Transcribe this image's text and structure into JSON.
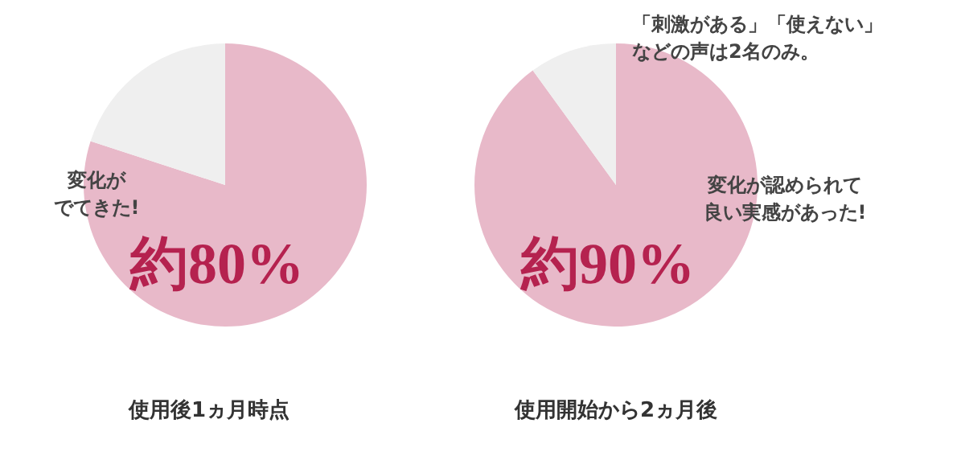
{
  "chart_data": [
    {
      "type": "pie",
      "title": "使用後1ヵ月時点",
      "categories": [
        null,
        null
      ],
      "values": [
        80,
        20
      ],
      "colors": [
        "#e8b9c9",
        "#efefef"
      ],
      "value_labels": [
        "約80%",
        null
      ],
      "annotations": [
        "変化が",
        "でてきた!"
      ]
    },
    {
      "type": "pie",
      "title": "使用開始から2ヵ月後",
      "categories": [
        null,
        null
      ],
      "values": [
        90,
        10
      ],
      "colors": [
        "#e8b9c9",
        "#efefef"
      ],
      "value_labels": [
        "約90%",
        null
      ],
      "annotations": [
        "「刺激がある」「使えない」",
        "などの声は2名のみ。",
        "変化が認められて",
        "良い実感があった!"
      ]
    }
  ]
}
